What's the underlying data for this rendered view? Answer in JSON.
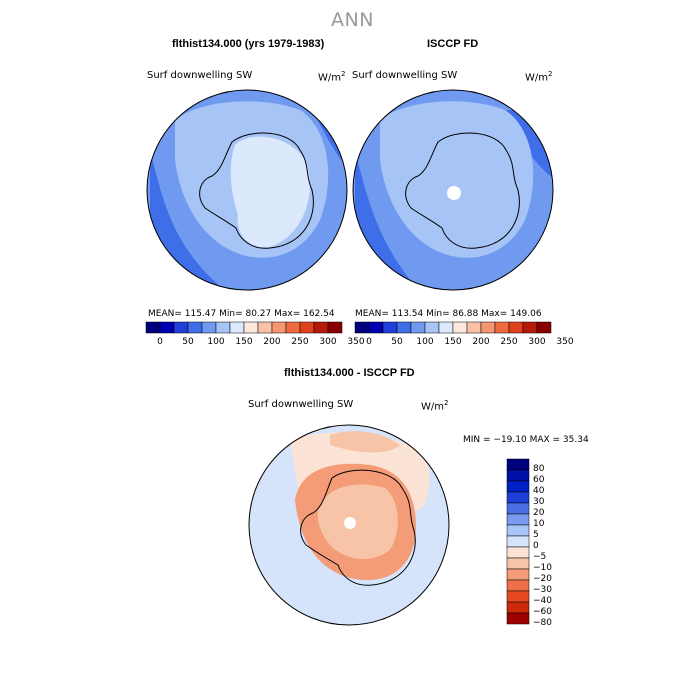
{
  "page_title": "ANN",
  "panels": {
    "model": {
      "title": "flthist134.000 (yrs 1979-1983)",
      "variable": "Surf downwelling SW",
      "units": "W/m",
      "units_sup": "2",
      "stats": "MEAN= 115.47   Min=  80.27   Max= 162.54"
    },
    "obs": {
      "title": "ISCCP FD",
      "variable": "Surf downwelling SW",
      "units": "W/m",
      "units_sup": "2",
      "stats": "MEAN= 113.54   Min=  86.88   Max= 149.06"
    },
    "diff": {
      "title": "flthist134.000 - ISCCP FD",
      "variable": "Surf downwelling SW",
      "units": "W/m",
      "units_sup": "2",
      "stats": "MIN = −19.10 MAX =  35.34"
    }
  },
  "colors": {
    "title_gray": "#999999",
    "abs_scale": [
      "#00007f",
      "#0000b2",
      "#1f3fd8",
      "#3f6fe8",
      "#6f9af0",
      "#a6c4f6",
      "#dce8fb",
      "#fce8dc",
      "#f9c1a6",
      "#f49670",
      "#ef6a3f",
      "#e0401e",
      "#b51a08",
      "#8a0000"
    ],
    "diff_scale": [
      "#00007f",
      "#0010a8",
      "#0020c8",
      "#1f3fd8",
      "#4a6fe5",
      "#7a9cf0",
      "#a9c4f6",
      "#d6e4fb",
      "#fbe4d6",
      "#f8c4a8",
      "#f49c78",
      "#ef7048",
      "#e84a20",
      "#cc2a08",
      "#9e0000"
    ]
  },
  "chart_data": [
    {
      "type": "polar-map",
      "title": "flthist134.000 (yrs 1979-1983)",
      "variable": "Surf downwelling SW",
      "units": "W/m2",
      "mean": 115.47,
      "min": 80.27,
      "max": 162.54,
      "colorbar_levels": [
        0,
        50,
        100,
        150,
        200,
        250,
        300,
        350
      ]
    },
    {
      "type": "polar-map",
      "title": "ISCCP FD",
      "variable": "Surf downwelling SW",
      "units": "W/m2",
      "mean": 113.54,
      "min": 86.88,
      "max": 149.06,
      "colorbar_levels": [
        0,
        50,
        100,
        150,
        200,
        250,
        300,
        350
      ]
    },
    {
      "type": "polar-map",
      "title": "flthist134.000 - ISCCP FD",
      "variable": "Surf downwelling SW",
      "units": "W/m2",
      "min": -19.1,
      "max": 35.34,
      "colorbar_levels": [
        80,
        60,
        40,
        30,
        20,
        10,
        5,
        0,
        -5,
        -10,
        -20,
        -30,
        -40,
        -60,
        -80
      ],
      "colorbar_labels": [
        "80",
        "60",
        "40",
        "30",
        "20",
        "10",
        "5",
        "0",
        "−5",
        "−10",
        "−20",
        "−30",
        "−40",
        "−60",
        "−80"
      ]
    }
  ]
}
